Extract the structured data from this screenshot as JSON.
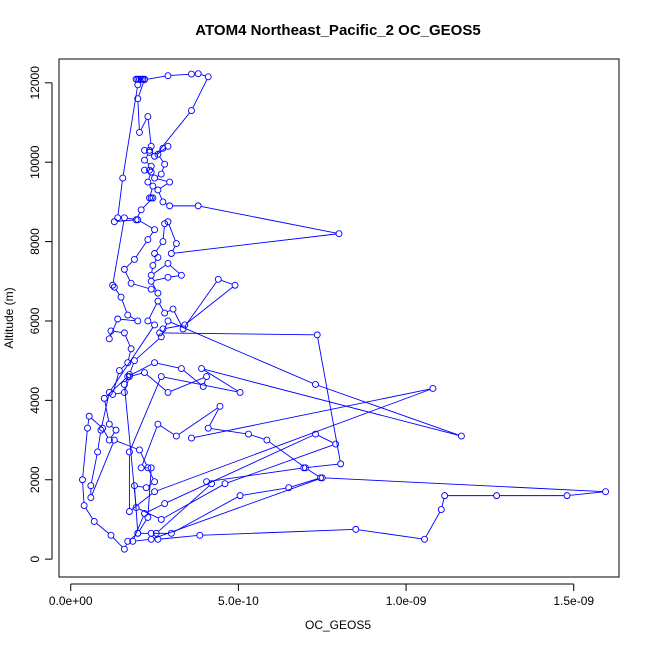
{
  "chart_data": {
    "type": "line",
    "title": "ATOM4 Northeast_Pacific_2 OC_GEOS5",
    "xlabel": "OC_GEOS5",
    "ylabel": "Altitude (m)",
    "xlim": [
      -3.5e-11,
      1.635e-09
    ],
    "ylim": [
      -450,
      12600
    ],
    "x_ticks": [
      0,
      5e-10,
      1e-09,
      1.5e-09
    ],
    "x_tick_labels": [
      "0.0e+00",
      "5.0e-10",
      "1.0e-09",
      "1.5e-09"
    ],
    "y_ticks": [
      0,
      2000,
      4000,
      6000,
      8000,
      10000,
      12000
    ],
    "y_tick_labels": [
      "0",
      "2000",
      "4000",
      "6000",
      "8000",
      "10000",
      "12000"
    ],
    "grid": false,
    "marker": "open-circle",
    "series": [
      {
        "color": "#0000ff",
        "points": [
          [
            1.95e-10,
            12090
          ],
          [
            2e-10,
            12090
          ],
          [
            2.05e-10,
            12090
          ],
          [
            2.1e-10,
            12090
          ],
          [
            2.15e-10,
            12090
          ],
          [
            2.2e-10,
            12090
          ],
          [
            2e-10,
            11600
          ],
          [
            2.05e-10,
            10750
          ],
          [
            2.3e-10,
            11150
          ],
          [
            2.4e-10,
            10400
          ],
          [
            2.35e-10,
            10300
          ],
          [
            2.2e-10,
            10300
          ],
          [
            2.35e-10,
            10250
          ],
          [
            2.2e-10,
            10050
          ],
          [
            2.4e-10,
            9900
          ],
          [
            2.35e-10,
            9800
          ],
          [
            2.2e-10,
            9800
          ],
          [
            2.4e-10,
            9750
          ],
          [
            2.3e-10,
            9500
          ],
          [
            2.45e-10,
            9400
          ],
          [
            2.35e-10,
            9100
          ],
          [
            2.4e-10,
            9100
          ],
          [
            2.45e-10,
            9100
          ],
          [
            2.1e-10,
            8800
          ],
          [
            1.95e-10,
            8550
          ],
          [
            1.3e-10,
            8500
          ],
          [
            1.4e-10,
            8600
          ],
          [
            1.55e-10,
            9600
          ],
          [
            2e-10,
            11950
          ],
          [
            2.2e-10,
            12080
          ],
          [
            2.9e-10,
            12180
          ],
          [
            3.6e-10,
            12220
          ],
          [
            3.8e-10,
            12230
          ],
          [
            4.1e-10,
            12150
          ],
          [
            3.6e-10,
            11300
          ],
          [
            2.5e-10,
            10150
          ],
          [
            2.9e-10,
            10400
          ],
          [
            2.75e-10,
            10350
          ],
          [
            2.6e-10,
            10200
          ],
          [
            2.8e-10,
            9950
          ],
          [
            2.7e-10,
            9700
          ],
          [
            2.5e-10,
            9600
          ],
          [
            2.95e-10,
            9500
          ],
          [
            2.6e-10,
            9300
          ],
          [
            2.75e-10,
            9000
          ],
          [
            2.95e-10,
            8900
          ],
          [
            3.8e-10,
            8900
          ],
          [
            8e-10,
            8200
          ],
          [
            3e-10,
            7700
          ],
          [
            3.15e-10,
            7950
          ],
          [
            2.9e-10,
            8500
          ],
          [
            2.8e-10,
            8450
          ],
          [
            2.75e-10,
            8000
          ],
          [
            2.5e-10,
            7700
          ],
          [
            2.6e-10,
            7600
          ],
          [
            2.45e-10,
            7400
          ],
          [
            2.4e-10,
            7150
          ],
          [
            2.9e-10,
            7450
          ],
          [
            3.3e-10,
            7150
          ],
          [
            2.9e-10,
            7100
          ],
          [
            2.4e-10,
            7000
          ],
          [
            2.6e-10,
            6700
          ],
          [
            2.4e-10,
            6800
          ],
          [
            1.8e-10,
            6950
          ],
          [
            1.6e-10,
            7300
          ],
          [
            1.9e-10,
            7550
          ],
          [
            2.3e-10,
            8050
          ],
          [
            2.5e-10,
            8300
          ],
          [
            2e-10,
            8550
          ],
          [
            1.6e-10,
            8600
          ],
          [
            1.25e-10,
            6900
          ],
          [
            1.3e-10,
            6850
          ],
          [
            1.5e-10,
            6600
          ],
          [
            1.7e-10,
            6150
          ],
          [
            2e-10,
            6000
          ],
          [
            1.4e-10,
            6050
          ],
          [
            1.15e-10,
            5550
          ],
          [
            1.2e-10,
            5750
          ],
          [
            1.6e-10,
            5700
          ],
          [
            1.8e-10,
            5300
          ],
          [
            1.7e-10,
            4950
          ],
          [
            1.45e-10,
            4750
          ],
          [
            1.25e-10,
            4150
          ],
          [
            1.6e-10,
            4200
          ],
          [
            1.75e-10,
            4600
          ],
          [
            2.2e-10,
            4700
          ],
          [
            2.9e-10,
            4200
          ],
          [
            4.05e-10,
            4600
          ],
          [
            3.95e-10,
            4350
          ],
          [
            3.3e-10,
            4800
          ],
          [
            2.5e-10,
            4950
          ],
          [
            1.7e-10,
            4600
          ],
          [
            1e-10,
            4050
          ],
          [
            1.15e-10,
            3400
          ],
          [
            1.35e-10,
            3250
          ],
          [
            1.15e-10,
            3000
          ],
          [
            9.5e-11,
            3300
          ],
          [
            5.5e-11,
            3600
          ],
          [
            5e-11,
            3300
          ],
          [
            3.5e-11,
            2000
          ],
          [
            4e-11,
            1350
          ],
          [
            7e-11,
            950
          ],
          [
            1.2e-10,
            600
          ],
          [
            1.6e-10,
            250
          ],
          [
            1.7e-10,
            450
          ],
          [
            2e-10,
            650
          ],
          [
            2.3e-10,
            1050
          ],
          [
            2.4e-10,
            2300
          ],
          [
            2.1e-10,
            2300
          ],
          [
            2.6e-10,
            3400
          ],
          [
            3.15e-10,
            3100
          ],
          [
            4.45e-10,
            3850
          ],
          [
            4.1e-10,
            3300
          ],
          [
            5.3e-10,
            3150
          ],
          [
            5.85e-10,
            3000
          ],
          [
            7e-10,
            2300
          ],
          [
            7.45e-10,
            2050
          ],
          [
            6.5e-10,
            1800
          ],
          [
            5.05e-10,
            1600
          ],
          [
            3e-10,
            650
          ],
          [
            2.4e-10,
            650
          ],
          [
            2e-10,
            650
          ],
          [
            1.9e-10,
            1850
          ],
          [
            2.25e-10,
            1800
          ],
          [
            2.5e-10,
            1950
          ],
          [
            2.3e-10,
            2300
          ],
          [
            2.05e-10,
            2750
          ],
          [
            1.3e-10,
            3000
          ],
          [
            6e-11,
            1550
          ],
          [
            6e-11,
            1850
          ],
          [
            8e-11,
            2700
          ],
          [
            9e-11,
            3250
          ],
          [
            1.15e-10,
            4200
          ],
          [
            2.5e-10,
            5900
          ],
          [
            2.3e-10,
            6000
          ],
          [
            2.6e-10,
            6500
          ],
          [
            2.8e-10,
            6200
          ],
          [
            3.05e-10,
            6300
          ],
          [
            3.35e-10,
            5800
          ],
          [
            4.4e-10,
            7050
          ],
          [
            4.9e-10,
            6900
          ],
          [
            3.4e-10,
            5900
          ],
          [
            2.75e-10,
            5800
          ],
          [
            2.65e-10,
            5700
          ],
          [
            7.35e-10,
            5650
          ],
          [
            8.05e-10,
            2400
          ],
          [
            6.95e-10,
            2300
          ],
          [
            4.05e-10,
            1950
          ],
          [
            4.2e-10,
            1900
          ],
          [
            2.55e-10,
            650
          ],
          [
            2.6e-10,
            500
          ],
          [
            3.85e-10,
            600
          ],
          [
            8.5e-10,
            750
          ],
          [
            1.055e-09,
            500
          ],
          [
            1.105e-09,
            1250
          ],
          [
            1.115e-09,
            1600
          ],
          [
            1.27e-09,
            1600
          ],
          [
            1.48e-09,
            1600
          ],
          [
            1.595e-09,
            1700
          ],
          [
            7.5e-10,
            2050
          ],
          [
            2.4e-10,
            500
          ],
          [
            1.85e-10,
            450
          ],
          [
            2.2e-10,
            1150
          ],
          [
            2.8e-10,
            1400
          ],
          [
            7.3e-10,
            3150
          ],
          [
            7.9e-10,
            2900
          ],
          [
            4.6e-10,
            1900
          ],
          [
            2.7e-10,
            1000
          ],
          [
            1.95e-10,
            1300
          ],
          [
            1.6e-10,
            4400
          ],
          [
            1.75e-10,
            4650
          ],
          [
            1.9e-10,
            5000
          ],
          [
            2.7e-10,
            5600
          ],
          [
            2.9e-10,
            6000
          ],
          [
            7.3e-10,
            4400
          ],
          [
            1.165e-09,
            3100
          ],
          [
            3.9e-10,
            4800
          ],
          [
            5.05e-10,
            4200
          ],
          [
            2.7e-10,
            4600
          ],
          [
            1.75e-10,
            2700
          ],
          [
            1.75e-10,
            1200
          ],
          [
            2.5e-10,
            1700
          ],
          [
            1.08e-09,
            4300
          ],
          [
            3.6e-10,
            3050
          ]
        ]
      }
    ]
  }
}
